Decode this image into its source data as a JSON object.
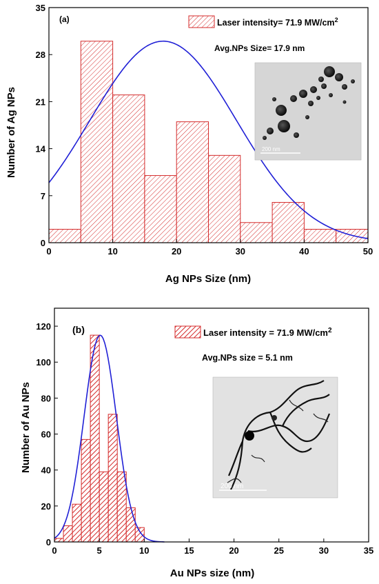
{
  "chart_data": [
    {
      "type": "bar",
      "panel_label": "(a)",
      "xlabel": "Ag NPs Size (nm)",
      "ylabel": "Number of Ag NPs",
      "xlim": [
        0,
        50
      ],
      "ylim": [
        0,
        35
      ],
      "x_ticks": [
        "0",
        "10",
        "20",
        "30",
        "40",
        "50"
      ],
      "y_ticks": [
        "0",
        "7",
        "14",
        "21",
        "28",
        "35"
      ],
      "bins": [
        [
          0,
          5
        ],
        [
          5,
          10
        ],
        [
          10,
          15
        ],
        [
          15,
          20
        ],
        [
          20,
          25
        ],
        [
          25,
          30
        ],
        [
          30,
          35
        ],
        [
          35,
          40
        ],
        [
          40,
          45
        ],
        [
          45,
          50
        ]
      ],
      "values": [
        2,
        30,
        22,
        10,
        18,
        13,
        3,
        6,
        2,
        2
      ],
      "fit": {
        "type": "gaussian",
        "peak": 30,
        "center": 17.9,
        "sigma": 11.5
      },
      "legend": {
        "label": "Laser intensity= 71.9 MW/cm",
        "superscript": "2",
        "placement": "top-right"
      },
      "annotation": "Avg.NPs Size= 17.9 nm",
      "inset": {
        "scale_label": "200 nm"
      },
      "colors": {
        "bar": "#d42a2a",
        "fit": "#1f1fd6"
      }
    },
    {
      "type": "bar",
      "panel_label": "(b)",
      "xlabel": "Au NPs size (nm)",
      "ylabel": "Number of Au NPs",
      "xlim": [
        0,
        35
      ],
      "ylim": [
        0,
        130
      ],
      "x_ticks": [
        "0",
        "5",
        "10",
        "15",
        "20",
        "25",
        "30",
        "35"
      ],
      "y_ticks": [
        "0",
        "20",
        "40",
        "60",
        "80",
        "100",
        "120"
      ],
      "bins": [
        [
          0,
          1
        ],
        [
          1,
          2
        ],
        [
          2,
          3
        ],
        [
          3,
          4
        ],
        [
          4,
          5
        ],
        [
          5,
          6
        ],
        [
          6,
          7
        ],
        [
          7,
          8
        ],
        [
          8,
          9
        ],
        [
          9,
          10
        ]
      ],
      "values": [
        2,
        9,
        21,
        57,
        115,
        39,
        71,
        39,
        19,
        8
      ],
      "fit": {
        "type": "gaussian",
        "peak": 115,
        "center": 5.1,
        "sigma": 1.8
      },
      "legend": {
        "label": "Laser intensity = 71.9 MW/cm",
        "superscript": "2",
        "placement": "top-right"
      },
      "annotation": "Avg.NPs size = 5.1 nm",
      "inset": {
        "scale_label": "200 nm"
      },
      "colors": {
        "bar": "#d42a2a",
        "fit": "#1f1fd6"
      }
    }
  ]
}
